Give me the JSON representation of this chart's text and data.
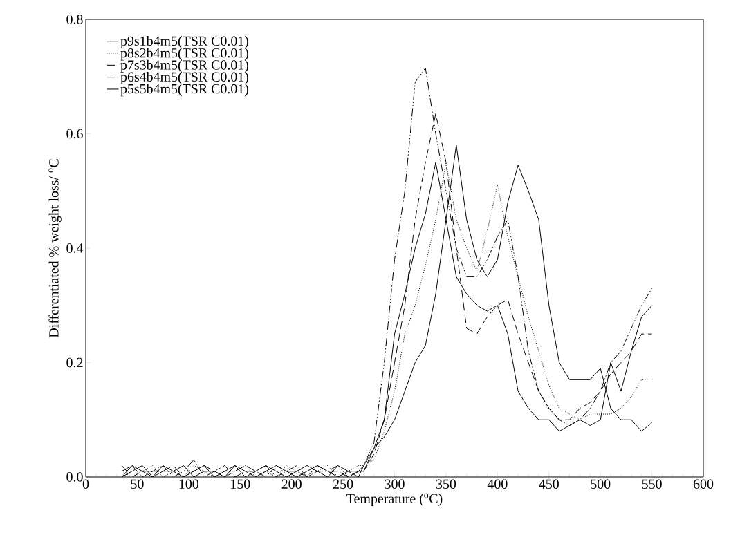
{
  "chart_data": {
    "type": "line",
    "xlabel": "Temperature ($^{o}$C)",
    "ylabel": "Differentiated % weight loss/ $^{o}$C",
    "x": [
      35,
      45,
      55,
      65,
      75,
      85,
      95,
      105,
      115,
      125,
      135,
      145,
      155,
      165,
      175,
      185,
      195,
      205,
      215,
      225,
      235,
      245,
      255,
      265,
      270,
      280,
      290,
      300,
      310,
      320,
      330,
      340,
      350,
      360,
      370,
      380,
      390,
      400,
      410,
      420,
      430,
      440,
      450,
      460,
      470,
      480,
      490,
      500,
      510,
      520,
      530,
      540,
      550
    ],
    "series": [
      {
        "name": "p9s1b4m5(TSR C0.01)",
        "color": "#000000",
        "line_style": "solid",
        "values": [
          0,
          0.01,
          0.02,
          0,
          0.01,
          0.01,
          0.02,
          0,
          0.01,
          0.01,
          0,
          0.02,
          0.01,
          0,
          0.01,
          0.02,
          0.01,
          0,
          0.01,
          0.02,
          0.01,
          0,
          0.01,
          0.01,
          0.01,
          0.05,
          0.07,
          0.1,
          0.15,
          0.2,
          0.23,
          0.32,
          0.45,
          0.58,
          0.45,
          0.38,
          0.35,
          0.38,
          0.48,
          0.545,
          0.5,
          0.45,
          0.3,
          0.2,
          0.17,
          0.17,
          0.17,
          0.19,
          0.12,
          0.1,
          0.1,
          0.08,
          0.095
        ]
      },
      {
        "name": "p8s2b4m5(TSR C0.01)",
        "color": "#000000",
        "line_style": "dotted",
        "values": [
          0.01,
          0,
          0.01,
          0.02,
          0,
          0.01,
          0,
          0.02,
          0.01,
          0,
          0.01,
          0.01,
          0.02,
          0,
          0.01,
          0,
          0.02,
          0.01,
          0,
          0.01,
          0.02,
          0,
          0.01,
          0.02,
          0.02,
          0.03,
          0.08,
          0.15,
          0.25,
          0.3,
          0.37,
          0.45,
          0.55,
          0.45,
          0.4,
          0.36,
          0.43,
          0.51,
          0.42,
          0.35,
          0.28,
          0.22,
          0.16,
          0.12,
          0.11,
          0.1,
          0.11,
          0.11,
          0.11,
          0.12,
          0.14,
          0.17,
          0.17
        ]
      },
      {
        "name": "p7s3b4m5(TSR C0.01)",
        "color": "#000000",
        "line_style": "dashed",
        "values": [
          0.01,
          0.02,
          0,
          0.01,
          0.01,
          0.02,
          0,
          0.01,
          0.02,
          0.01,
          0,
          0.01,
          0.02,
          0.01,
          0,
          0.02,
          0.01,
          0.01,
          0,
          0.02,
          0.01,
          0.01,
          0,
          0.01,
          0.01,
          0.04,
          0.1,
          0.2,
          0.3,
          0.45,
          0.55,
          0.635,
          0.55,
          0.4,
          0.26,
          0.25,
          0.28,
          0.3,
          0.31,
          0.25,
          0.2,
          0.15,
          0.12,
          0.1,
          0.1,
          0.12,
          0.13,
          0.15,
          0.18,
          0.2,
          0.22,
          0.25,
          0.25
        ]
      },
      {
        "name": "p6s4b4m5(TSR C0.01)",
        "color": "#000000",
        "line_style": "dashdotdotted",
        "values": [
          0.02,
          0,
          0.01,
          0.01,
          0.02,
          0,
          0.01,
          0.03,
          0,
          0.01,
          0.02,
          0,
          0.01,
          0.01,
          0.02,
          0,
          0.01,
          0.02,
          0,
          0.01,
          0.01,
          0.02,
          0,
          0.01,
          0.02,
          0.06,
          0.2,
          0.38,
          0.5,
          0.69,
          0.715,
          0.6,
          0.5,
          0.4,
          0.35,
          0.35,
          0.38,
          0.42,
          0.45,
          0.35,
          0.22,
          0.15,
          0.12,
          0.1,
          0.09,
          0.1,
          0.12,
          0.15,
          0.2,
          0.22,
          0.26,
          0.3,
          0.33
        ]
      },
      {
        "name": "p5s5b4m5(TSR C0.01)",
        "color": "#000000",
        "line_style": "solid",
        "values": [
          0,
          0.02,
          0.01,
          0,
          0.02,
          0.01,
          0,
          0.01,
          0.02,
          0,
          0.01,
          0.02,
          0,
          0.01,
          0.02,
          0.01,
          0,
          0.01,
          0.02,
          0.01,
          0,
          0.02,
          0.01,
          0,
          0.02,
          0.05,
          0.1,
          0.25,
          0.32,
          0.4,
          0.46,
          0.55,
          0.45,
          0.35,
          0.32,
          0.3,
          0.29,
          0.3,
          0.25,
          0.15,
          0.12,
          0.1,
          0.1,
          0.08,
          0.09,
          0.1,
          0.09,
          0.1,
          0.2,
          0.15,
          0.22,
          0.28,
          0.3
        ]
      }
    ],
    "xlim": [
      0,
      600
    ],
    "xticks": [
      0,
      {
        "value": 10,
        "label": null
      },
      {
        "value": 20,
        "label": null
      },
      {
        "value": 30,
        "label": null
      },
      {
        "value": 40,
        "label": null
      },
      50,
      {
        "value": 60,
        "label": null
      },
      {
        "value": 70,
        "label": null
      },
      {
        "value": 80,
        "label": null
      },
      {
        "value": 90,
        "label": null
      },
      100,
      {
        "value": 110,
        "label": null
      },
      {
        "value": 120,
        "label": null
      },
      {
        "value": 130,
        "label": null
      },
      {
        "value": 140,
        "label": null
      },
      150,
      {
        "value": 160,
        "label": null
      },
      {
        "value": 170,
        "label": null
      },
      {
        "value": 180,
        "label": null
      },
      {
        "value": 190,
        "label": null
      },
      200,
      {
        "value": 210,
        "label": null
      },
      {
        "value": 220,
        "label": null
      },
      {
        "value": 230,
        "label": null
      },
      {
        "value": 240,
        "label": null
      },
      250,
      {
        "value": 260,
        "label": null
      },
      {
        "value": 270,
        "label": null
      },
      {
        "value": 280,
        "label": null
      },
      {
        "value": 290,
        "label": null
      },
      300,
      {
        "value": 310,
        "label": null
      },
      {
        "value": 320,
        "label": null
      },
      {
        "value": 330,
        "label": null
      },
      {
        "value": 340,
        "label": null
      },
      350,
      {
        "value": 360,
        "label": null
      },
      {
        "value": 370,
        "label": null
      },
      {
        "value": 380,
        "label": null
      },
      {
        "value": 390,
        "label": null
      },
      400,
      {
        "value": 410,
        "label": null
      },
      {
        "value": 420,
        "label": null
      },
      {
        "value": 430,
        "label": null
      },
      {
        "value": 440,
        "label": null
      },
      450,
      {
        "value": 460,
        "label": null
      },
      {
        "value": 470,
        "label": null
      },
      {
        "value": 480,
        "label": null
      },
      {
        "value": 490,
        "label": null
      },
      500,
      {
        "value": 510,
        "label": null
      },
      {
        "value": 520,
        "label": null
      },
      {
        "value": 530,
        "label": null
      },
      {
        "value": 540,
        "label": null
      },
      550,
      {
        "value": 560,
        "label": null
      },
      {
        "value": 570,
        "label": null
      },
      {
        "value": 580,
        "label": null
      },
      {
        "value": 590,
        "label": null
      },
      600
    ],
    "ylim": [
      0,
      0.8
    ],
    "yticks": [
      {
        "value": 0,
        "label": "0.0"
      },
      {
        "value": 0.2,
        "label": "0.2"
      },
      {
        "value": 0.4,
        "label": "0.4"
      },
      {
        "value": 0.6,
        "label": "0.6"
      },
      {
        "value": 0.8,
        "label": "0.8"
      }
    ],
    "legend": "top left"
  }
}
